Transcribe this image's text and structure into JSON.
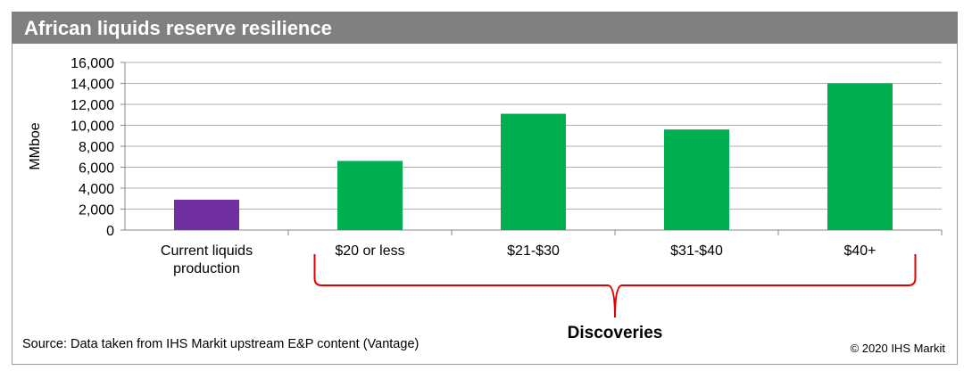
{
  "title": "African liquids reserve resilience",
  "footer": {
    "source": "Source: Data taken from IHS Markit upstream E&P content (Vantage)",
    "copyright": "© 2020 IHS Markit"
  },
  "chart_data": {
    "type": "bar",
    "ylabel": "MMboe",
    "ylim": [
      0,
      16000
    ],
    "yticks": [
      0,
      2000,
      4000,
      6000,
      8000,
      10000,
      12000,
      14000,
      16000
    ],
    "ytick_labels": [
      "0",
      "2,000",
      "4,000",
      "6,000",
      "8,000",
      "10,000",
      "12,000",
      "14,000",
      "16,000"
    ],
    "grid": true,
    "categories": [
      [
        "Current liquids",
        "production"
      ],
      [
        "$20 or less"
      ],
      [
        "$21-$30"
      ],
      [
        "$31-$40"
      ],
      [
        "$40+"
      ]
    ],
    "values": [
      2900,
      6600,
      11100,
      9600,
      14000
    ],
    "colors": [
      "#7030A0",
      "#00B050",
      "#00B050",
      "#00B050",
      "#00B050"
    ],
    "annotation": {
      "label": "Discoveries",
      "spans_categories": [
        "$20 or less",
        "$21-$30",
        "$31-$40",
        "$40+"
      ],
      "color": "#E00000"
    }
  }
}
